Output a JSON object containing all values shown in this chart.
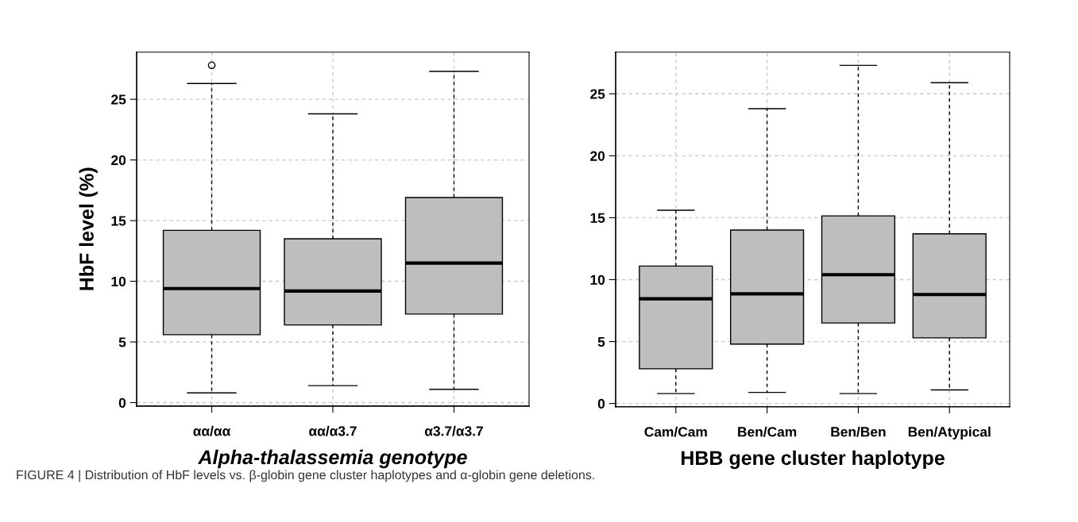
{
  "chart_data": [
    {
      "type": "box",
      "categories": [
        "αα/αα",
        "αα/α3.7",
        "α3.7/α3.7"
      ],
      "xlabel": "Alpha-thalassemia genotype",
      "ylabel": "HbF level (%)",
      "ylim": [
        -0.28,
        28.88
      ],
      "yticks": [
        0,
        5,
        10,
        15,
        20,
        25
      ],
      "grid": true,
      "color": "#bebebe",
      "boxes": [
        {
          "low": 0.8,
          "q1": 5.6,
          "median": 9.4,
          "q3": 14.2,
          "high": 26.3,
          "outliers": [
            27.8
          ]
        },
        {
          "low": 1.4,
          "q1": 6.4,
          "median": 9.2,
          "q3": 13.5,
          "high": 23.8
        },
        {
          "low": 1.1,
          "q1": 7.3,
          "median": 11.5,
          "q3": 16.9,
          "high": 27.3
        }
      ]
    },
    {
      "type": "box",
      "categories": [
        "Cam/Cam",
        "Ben/Cam",
        "Ben/Ben",
        "Ben/Atypical"
      ],
      "xlabel": "HBB gene cluster haplotype",
      "ylim": [
        -0.26,
        28.36
      ],
      "yticks": [
        0,
        5,
        10,
        15,
        20,
        25
      ],
      "grid": true,
      "color": "#bebebe",
      "annotations": [
        "FIGURE 4 | Distribution of HbF levels vs. β-globin gene cluster haplotypes and α-globin gene deletions."
      ],
      "boxes": [
        {
          "low": 0.8,
          "q1": 2.8,
          "median": 8.45,
          "q3": 11.1,
          "high": 15.6
        },
        {
          "low": 0.9,
          "q1": 4.8,
          "median": 8.85,
          "q3": 14.0,
          "high": 23.8
        },
        {
          "low": 0.8,
          "q1": 6.5,
          "median": 10.4,
          "q3": 15.15,
          "high": 27.3
        },
        {
          "low": 1.1,
          "q1": 5.3,
          "median": 8.8,
          "q3": 13.7,
          "high": 25.9
        }
      ]
    }
  ]
}
